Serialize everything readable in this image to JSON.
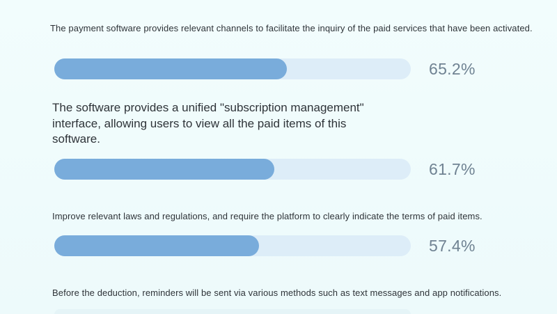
{
  "chart_data": {
    "type": "bar",
    "orientation": "horizontal",
    "unit": "%",
    "value_range": [
      0,
      100
    ],
    "grid": false,
    "legend": false,
    "categories": [
      "The payment software provides relevant channels to facilitate the inquiry of the paid services that have been activated.",
      "The software provides a unified \"subscription management\" interface, allowing users to view all the paid items of this software.",
      "Improve relevant laws and regulations, and require the platform to clearly indicate the terms of paid items.",
      "Before the deduction, reminders will be sent via various methods such as text messages and app notifications."
    ],
    "values": [
      65.2,
      61.7,
      57.4,
      null
    ],
    "items": [
      {
        "label": "The payment software provides relevant channels to facilitate the inquiry of the paid services that have been activated.",
        "value": 65.2,
        "value_label": "65.2%"
      },
      {
        "label": "The software provides a unified \"subscription management\" interface, allowing users to view all the paid items of this software.",
        "value": 61.7,
        "value_label": "61.7%"
      },
      {
        "label": "Improve relevant laws and regulations, and require the platform to clearly indicate the terms of paid items.",
        "value": 57.4,
        "value_label": "57.4%"
      },
      {
        "label": "Before the deduction, reminders will be sent via various methods such as text messages and app notifications.",
        "value": null,
        "value_label": ""
      }
    ],
    "colors": {
      "background": "#eefafb",
      "bar_fill": "#79acdb",
      "bar_track": "#ddedf8",
      "value_text": "#6f8292",
      "label_text": "#2e3338"
    }
  }
}
